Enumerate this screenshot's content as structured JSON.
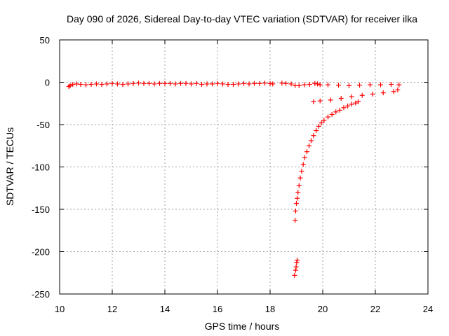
{
  "chart_data": {
    "type": "scatter",
    "title": "Day 090 of 2026, Sidereal Day-to-day VTEC variation (SDTVAR) for receiver ilka",
    "xlabel": "GPS time / hours",
    "ylabel": "SDTVAR / TECUs",
    "xlim": [
      10,
      24
    ],
    "ylim": [
      -250,
      50
    ],
    "xticks": [
      10,
      12,
      14,
      16,
      18,
      20,
      22,
      24
    ],
    "yticks": [
      -250,
      -200,
      -150,
      -100,
      -50,
      0,
      50
    ],
    "grid": true,
    "marker": "plus",
    "colors": {
      "series": "#ff0000",
      "grid": "#a0a0a0",
      "frame": "#000000"
    },
    "series": [
      {
        "points": [
          [
            10.35,
            -5
          ],
          [
            10.4,
            -4
          ],
          [
            10.5,
            -2.5
          ],
          [
            10.65,
            -2
          ],
          [
            10.8,
            -2.5
          ],
          [
            11.0,
            -3
          ],
          [
            11.2,
            -2.5
          ],
          [
            11.4,
            -2
          ],
          [
            11.6,
            -2.5
          ],
          [
            11.8,
            -2
          ],
          [
            12.0,
            -1.5
          ],
          [
            12.2,
            -2
          ],
          [
            12.4,
            -2.5
          ],
          [
            12.6,
            -2
          ],
          [
            12.8,
            -1.5
          ],
          [
            13.0,
            -1
          ],
          [
            13.2,
            -1.5
          ],
          [
            13.4,
            -1.5
          ],
          [
            13.6,
            -2
          ],
          [
            13.8,
            -1.5
          ],
          [
            14.0,
            -1.5
          ],
          [
            14.2,
            -1.5
          ],
          [
            14.4,
            -2
          ],
          [
            14.6,
            -1.5
          ],
          [
            14.8,
            -1.5
          ],
          [
            15.0,
            -2
          ],
          [
            15.2,
            -1.5
          ],
          [
            15.4,
            -2.5
          ],
          [
            15.6,
            -2
          ],
          [
            15.8,
            -2
          ],
          [
            16.0,
            -1.5
          ],
          [
            16.2,
            -2
          ],
          [
            16.4,
            -2.5
          ],
          [
            16.6,
            -2.5
          ],
          [
            16.8,
            -2
          ],
          [
            17.0,
            -1.5
          ],
          [
            17.2,
            -2
          ],
          [
            17.4,
            -1.5
          ],
          [
            17.6,
            -1.5
          ],
          [
            17.8,
            -1
          ],
          [
            18.0,
            -1.5
          ],
          [
            18.1,
            -2
          ],
          [
            18.45,
            -1
          ],
          [
            18.6,
            -1.5
          ],
          [
            18.8,
            -2
          ],
          [
            18.95,
            -4
          ],
          [
            19.1,
            -4
          ],
          [
            19.3,
            -3
          ],
          [
            19.5,
            -2.5
          ],
          [
            19.7,
            -1.5
          ],
          [
            19.8,
            -2
          ],
          [
            19.9,
            -3
          ],
          [
            20.2,
            -3
          ],
          [
            20.6,
            -3.5
          ],
          [
            21.0,
            -4
          ],
          [
            21.4,
            -3.5
          ],
          [
            21.8,
            -3
          ],
          [
            22.2,
            -3
          ],
          [
            22.6,
            -2.5
          ],
          [
            22.9,
            -3
          ],
          [
            19.65,
            -23
          ],
          [
            19.9,
            -22
          ],
          [
            20.3,
            -21
          ],
          [
            20.7,
            -19
          ],
          [
            21.1,
            -17
          ],
          [
            21.5,
            -15.5
          ],
          [
            21.9,
            -14
          ],
          [
            22.3,
            -12.5
          ],
          [
            22.7,
            -11
          ],
          [
            22.85,
            -9
          ],
          [
            18.95,
            -163
          ],
          [
            18.97,
            -152
          ],
          [
            19.0,
            -143
          ],
          [
            19.03,
            -137
          ],
          [
            19.06,
            -130
          ],
          [
            19.1,
            -122
          ],
          [
            19.15,
            -113
          ],
          [
            19.2,
            -105
          ],
          [
            19.26,
            -97
          ],
          [
            19.32,
            -89
          ],
          [
            19.4,
            -82
          ],
          [
            19.48,
            -75
          ],
          [
            19.56,
            -69
          ],
          [
            19.65,
            -63
          ],
          [
            19.75,
            -57
          ],
          [
            19.85,
            -52
          ],
          [
            19.95,
            -48
          ],
          [
            20.05,
            -45
          ],
          [
            20.2,
            -41
          ],
          [
            20.35,
            -38
          ],
          [
            20.5,
            -35
          ],
          [
            20.65,
            -33
          ],
          [
            20.8,
            -30
          ],
          [
            20.95,
            -28
          ],
          [
            21.1,
            -26
          ],
          [
            21.25,
            -24.5
          ],
          [
            21.35,
            -23
          ],
          [
            18.93,
            -228
          ],
          [
            18.97,
            -222
          ],
          [
            18.99,
            -218
          ],
          [
            19.01,
            -213
          ],
          [
            19.03,
            -210
          ]
        ]
      }
    ]
  }
}
